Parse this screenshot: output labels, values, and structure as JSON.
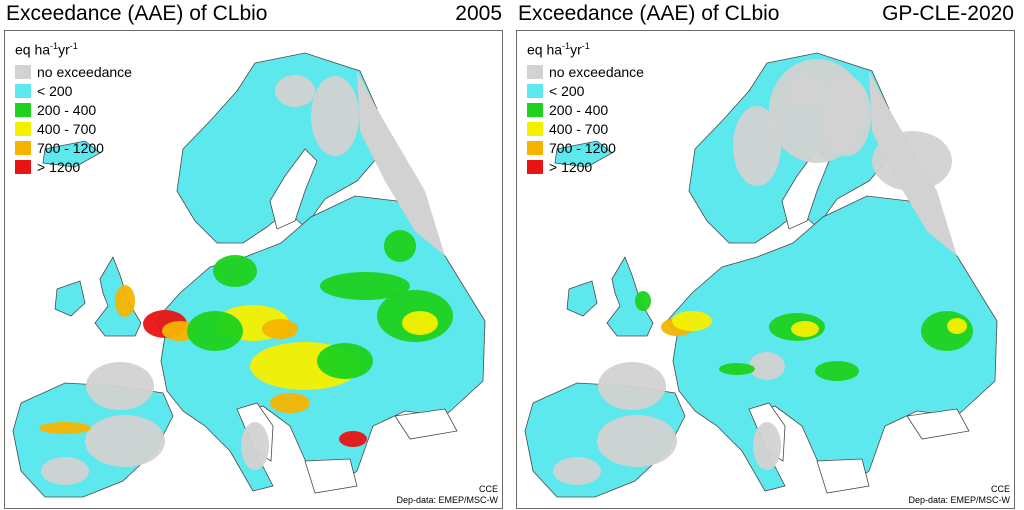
{
  "panels": [
    {
      "title": "Exceedance (AAE) of CLbio",
      "scenario": "2005",
      "intensity": "high"
    },
    {
      "title": "Exceedance (AAE) of CLbio",
      "scenario": "GP-CLE-2020",
      "intensity": "low"
    }
  ],
  "legend": {
    "unit_base": "eq ha",
    "unit_exp1": "-1",
    "unit_mid": "yr",
    "unit_exp2": "-1",
    "classes": [
      {
        "label": "no exceedance",
        "color": "#d2d2d2"
      },
      {
        "label": "< 200",
        "color": "#5ce8ec"
      },
      {
        "label": "200 - 400",
        "color": "#1ed21e"
      },
      {
        "label": "400 - 700",
        "color": "#f5f000"
      },
      {
        "label": "700 - 1200",
        "color": "#f5b400"
      },
      {
        "label": "> 1200",
        "color": "#e81414"
      }
    ]
  },
  "credit": {
    "line1": "CCE",
    "line2": "Dep-data: EMEP/MSC-W"
  }
}
